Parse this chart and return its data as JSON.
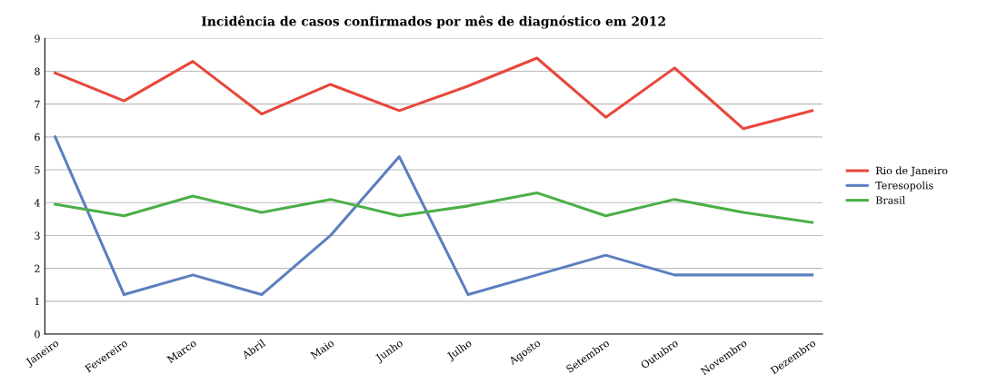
{
  "chart_data": {
    "type": "line",
    "title": "Incidência de casos confirmados por mês de diagnóstico em 2012",
    "categories": [
      "Janeiro",
      "Fevereiro",
      "Marco",
      "Abril",
      "Maio",
      "Junho",
      "Julho",
      "Agosto",
      "Setembro",
      "Outubro",
      "Novembro",
      "Dezembro"
    ],
    "series": [
      {
        "name": "Rio de Janeiro",
        "color": "#e8473b",
        "values": [
          7.95,
          7.1,
          8.3,
          6.7,
          7.6,
          6.8,
          7.55,
          8.4,
          6.6,
          8.1,
          6.25,
          6.8
        ]
      },
      {
        "name": "Teresopolis",
        "color": "#5b7fbf",
        "values": [
          6.0,
          1.2,
          1.8,
          1.2,
          3.0,
          5.4,
          1.2,
          1.8,
          2.4,
          1.8,
          1.8,
          1.8
        ]
      },
      {
        "name": "Brasil",
        "color": "#4caf48",
        "values": [
          3.95,
          3.6,
          4.2,
          3.7,
          4.1,
          3.6,
          3.9,
          4.3,
          3.6,
          4.1,
          3.7,
          3.4
        ]
      }
    ],
    "ylim": [
      0,
      9
    ],
    "yticks": [
      0,
      1,
      2,
      3,
      4,
      5,
      6,
      7,
      8,
      9
    ],
    "grid": "y",
    "legend": "right",
    "marker": "none",
    "line_style": "solid"
  }
}
